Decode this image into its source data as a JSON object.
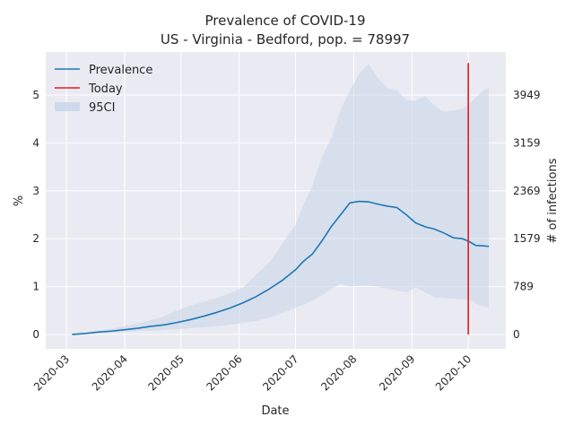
{
  "chart_data": {
    "type": "line",
    "title_line1": "Prevalence of COVID-19",
    "title_line2": "US - Virginia - Bedford, pop. = 78997",
    "xlabel": "Date",
    "ylabel": "%",
    "ylabel_right": "# of infections",
    "x_ticks": [
      "2020-03",
      "2020-04",
      "2020-05",
      "2020-06",
      "2020-07",
      "2020-08",
      "2020-09",
      "2020-10"
    ],
    "x_tick_dates": [
      "2020-03-01",
      "2020-04-01",
      "2020-05-01",
      "2020-06-01",
      "2020-07-01",
      "2020-08-01",
      "2020-09-01",
      "2020-10-01"
    ],
    "y_ticks": [
      0,
      1,
      2,
      3,
      4,
      5
    ],
    "y_right_ticks": [
      0,
      789,
      1579,
      2369,
      3159,
      3949
    ],
    "ylim": [
      -0.3,
      5.9
    ],
    "xlim": [
      "2020-02-19",
      "2020-10-21"
    ],
    "grid": true,
    "legend_location": "upper left",
    "legend": [
      {
        "label": "Prevalence",
        "kind": "line",
        "color": "#1f77b4"
      },
      {
        "label": "Today",
        "kind": "line",
        "color": "#e41a1c"
      },
      {
        "label": "95CI",
        "kind": "patch",
        "color": "#c7d6e9"
      }
    ],
    "today": {
      "date": "2020-10-01",
      "y_bottom": 0,
      "y_top": 5.67,
      "color": "#e41a1c"
    },
    "series": [
      {
        "name": "Prevalence",
        "color": "#1f77b4",
        "x": [
          "2020-03-04",
          "2020-03-11",
          "2020-03-18",
          "2020-03-25",
          "2020-04-01",
          "2020-04-08",
          "2020-04-15",
          "2020-04-22",
          "2020-04-29",
          "2020-05-06",
          "2020-05-13",
          "2020-05-20",
          "2020-05-27",
          "2020-06-03",
          "2020-06-10",
          "2020-06-17",
          "2020-06-24",
          "2020-07-01",
          "2020-07-05",
          "2020-07-10",
          "2020-07-15",
          "2020-07-20",
          "2020-07-25",
          "2020-07-30",
          "2020-08-04",
          "2020-08-09",
          "2020-08-14",
          "2020-08-19",
          "2020-08-24",
          "2020-08-29",
          "2020-09-03",
          "2020-09-08",
          "2020-09-13",
          "2020-09-18",
          "2020-09-23",
          "2020-09-28",
          "2020-10-01",
          "2020-10-05",
          "2020-10-09",
          "2020-10-12"
        ],
        "y": [
          0.0,
          0.02,
          0.05,
          0.07,
          0.1,
          0.13,
          0.17,
          0.2,
          0.25,
          0.31,
          0.38,
          0.46,
          0.55,
          0.66,
          0.79,
          0.95,
          1.13,
          1.35,
          1.52,
          1.68,
          1.95,
          2.25,
          2.5,
          2.75,
          2.78,
          2.77,
          2.72,
          2.68,
          2.65,
          2.5,
          2.33,
          2.25,
          2.2,
          2.12,
          2.02,
          2.0,
          1.95,
          1.86,
          1.85,
          1.84
        ]
      },
      {
        "name": "95CI",
        "color": "#c7d6e9",
        "x": [
          "2020-03-04",
          "2020-03-11",
          "2020-03-18",
          "2020-03-25",
          "2020-04-01",
          "2020-04-08",
          "2020-04-15",
          "2020-04-22",
          "2020-04-29",
          "2020-05-06",
          "2020-05-13",
          "2020-05-20",
          "2020-05-27",
          "2020-06-03",
          "2020-06-10",
          "2020-06-17",
          "2020-06-24",
          "2020-07-01",
          "2020-07-05",
          "2020-07-10",
          "2020-07-15",
          "2020-07-20",
          "2020-07-25",
          "2020-07-30",
          "2020-08-04",
          "2020-08-09",
          "2020-08-14",
          "2020-08-19",
          "2020-08-24",
          "2020-08-29",
          "2020-09-03",
          "2020-09-08",
          "2020-09-13",
          "2020-09-18",
          "2020-09-23",
          "2020-09-28",
          "2020-10-01",
          "2020-10-05",
          "2020-10-09",
          "2020-10-12"
        ],
        "lower": [
          0.0,
          0.01,
          0.02,
          0.03,
          0.05,
          0.07,
          0.08,
          0.09,
          0.11,
          0.13,
          0.15,
          0.17,
          0.2,
          0.24,
          0.28,
          0.35,
          0.45,
          0.55,
          0.62,
          0.7,
          0.82,
          0.95,
          1.05,
          1.0,
          1.02,
          1.02,
          1.0,
          0.95,
          0.92,
          0.88,
          0.98,
          0.88,
          0.78,
          0.76,
          0.75,
          0.74,
          0.72,
          0.65,
          0.58,
          0.55
        ],
        "upper": [
          0.01,
          0.04,
          0.08,
          0.12,
          0.17,
          0.23,
          0.3,
          0.38,
          0.5,
          0.6,
          0.68,
          0.76,
          0.86,
          0.98,
          1.25,
          1.5,
          1.9,
          2.3,
          2.7,
          3.1,
          3.7,
          4.1,
          4.7,
          5.1,
          5.45,
          5.65,
          5.35,
          5.15,
          5.1,
          4.9,
          4.88,
          4.98,
          4.78,
          4.65,
          4.68,
          4.72,
          4.8,
          4.95,
          5.1,
          5.15
        ]
      }
    ]
  }
}
